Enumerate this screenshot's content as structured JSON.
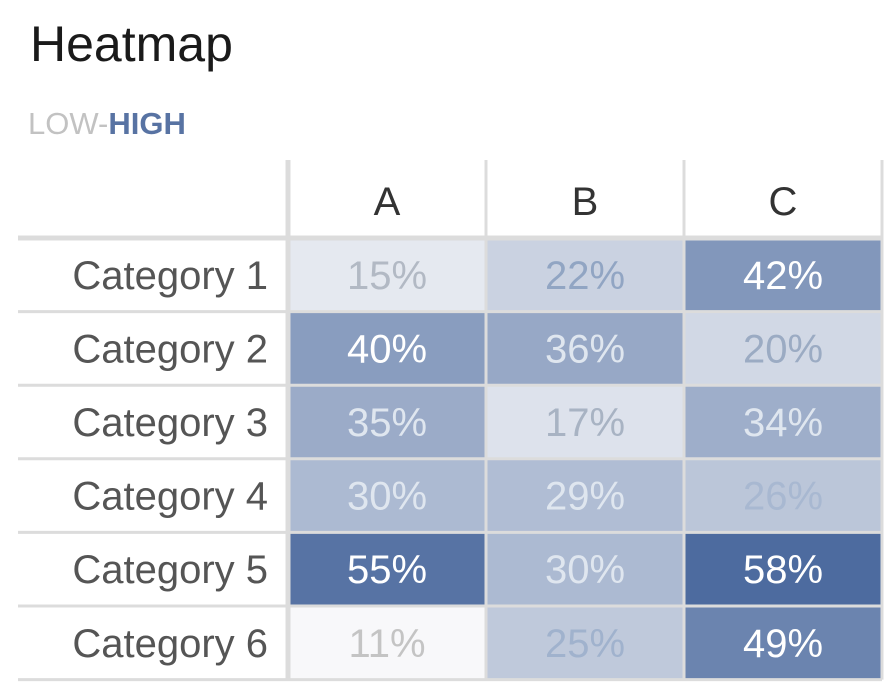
{
  "chart_data": {
    "type": "heatmap",
    "title": "Heatmap",
    "legend": {
      "low_label": "LOW-",
      "high_label": "HIGH",
      "placement": "top-left"
    },
    "columns": [
      "A",
      "B",
      "C"
    ],
    "rows": [
      "Category 1",
      "Category 2",
      "Category 3",
      "Category 4",
      "Category 5",
      "Category 6"
    ],
    "values": [
      [
        15,
        22,
        42
      ],
      [
        40,
        36,
        20
      ],
      [
        35,
        17,
        34
      ],
      [
        30,
        29,
        26
      ],
      [
        55,
        30,
        58
      ],
      [
        11,
        25,
        49
      ]
    ],
    "value_suffix": "%",
    "colors": {
      "low": "#f8f8fa",
      "high": "#4d6b9f",
      "low_text": "#c4c4c4",
      "mid_text": "#8ea3c3",
      "high_text": "#ffffff",
      "grid_line": "#dcdcdc"
    }
  }
}
